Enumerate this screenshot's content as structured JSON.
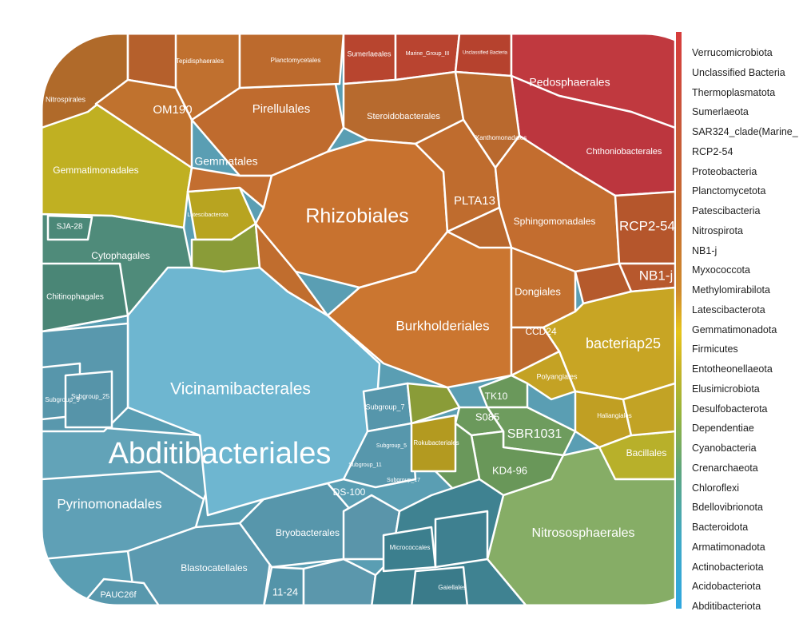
{
  "colors": {
    "red": "#c0393f",
    "rust": "#b85a2e",
    "orange": "#c97030",
    "gold": "#c5a523",
    "olive": "#8a9c38",
    "teal": "#4e8a79",
    "green": "#6c9a5d",
    "lightgreen": "#86ad66",
    "darkteal": "#3f8291",
    "skyblue": "#6fb5cf",
    "blue": "#5ea2b8"
  },
  "legend": {
    "items": [
      "Verrucomicrobiota",
      "Unclassified Bacteria",
      "Thermoplasmatota",
      "Sumerlaeota",
      "SAR324_clade(Marine_",
      "RCP2-54",
      "Proteobacteria",
      "Planctomycetota",
      "Patescibacteria",
      "Nitrospirota",
      "NB1-j",
      "Myxococcota",
      "Methylomirabilota",
      "Latescibacterota",
      "Gemmatimonadota",
      "Firmicutes",
      "Entotheonellaeota",
      "Elusimicrobiota",
      "Desulfobacterota",
      "Dependentiae",
      "Cyanobacteria",
      "Crenarchaeota",
      "Chloroflexi",
      "Bdellovibrionota",
      "Bacteroidota",
      "Armatimonadota",
      "Actinobacteriota",
      "Acidobacteriota",
      "Abditibacteriota"
    ]
  },
  "cells": [
    {
      "label": "Abditibacteriales",
      "color": "blue"
    },
    {
      "label": "Pyrinomonadales",
      "color": "blue"
    },
    {
      "label": "Blastocatellales",
      "color": "blue"
    },
    {
      "label": "Bryobacterales",
      "color": "blue"
    },
    {
      "label": "11-24",
      "color": "blue"
    },
    {
      "label": "PAUC26f",
      "color": "blue"
    },
    {
      "label": "Vicinamibacterales",
      "color": "skyblue"
    },
    {
      "label": "Subgroup_9",
      "color": "blue"
    },
    {
      "label": "Subgroup_25",
      "color": "blue"
    },
    {
      "label": "Subgroup_7",
      "color": "blue"
    },
    {
      "label": "Subgroup_5",
      "color": "blue"
    },
    {
      "label": "Subgroup_11",
      "color": "blue"
    },
    {
      "label": "Subgroup_17",
      "color": "blue"
    },
    {
      "label": "DS-100",
      "color": "blue"
    },
    {
      "label": "Cytophagales",
      "color": "teal"
    },
    {
      "label": "Chitinophagales",
      "color": "teal"
    },
    {
      "label": "SJA-28",
      "color": "teal"
    },
    {
      "label": "Gemmatimonadales",
      "color": "gold"
    },
    {
      "label": "Latescibacterota",
      "color": "gold"
    },
    {
      "label": "Nitrospirales",
      "color": "rust"
    },
    {
      "label": "OM190",
      "color": "orange"
    },
    {
      "label": "Pirellulales",
      "color": "orange"
    },
    {
      "label": "Gemmatales",
      "color": "orange"
    },
    {
      "label": "Tepidisphaerales",
      "color": "orange"
    },
    {
      "label": "Planctomycetales",
      "color": "orange"
    },
    {
      "label": "Sumerlaeales",
      "color": "rust"
    },
    {
      "label": "Marine_Group_III",
      "color": "rust"
    },
    {
      "label": "Unclassified Bacteria",
      "color": "rust"
    },
    {
      "label": "Pedosphaerales",
      "color": "red"
    },
    {
      "label": "Chthoniobacterales",
      "color": "red"
    },
    {
      "label": "Rhizobiales",
      "color": "orange"
    },
    {
      "label": "Steroidobacterales",
      "color": "orange"
    },
    {
      "label": "Xanthomonadales",
      "color": "orange"
    },
    {
      "label": "PLTA13",
      "color": "orange"
    },
    {
      "label": "Sphingomonadales",
      "color": "orange"
    },
    {
      "label": "Burkholderiales",
      "color": "orange"
    },
    {
      "label": "Dongiales",
      "color": "orange"
    },
    {
      "label": "CCD24",
      "color": "orange"
    },
    {
      "label": "RCP2-54",
      "color": "rust"
    },
    {
      "label": "NB1-j",
      "color": "rust"
    },
    {
      "label": "bacteriap25",
      "color": "gold"
    },
    {
      "label": "Polyangiales",
      "color": "gold"
    },
    {
      "label": "Haliangiales",
      "color": "gold"
    },
    {
      "label": "Bacillales",
      "color": "gold"
    },
    {
      "label": "TK10",
      "color": "green"
    },
    {
      "label": "S085",
      "color": "green"
    },
    {
      "label": "SBR1031",
      "color": "green"
    },
    {
      "label": "KD4-96",
      "color": "green"
    },
    {
      "label": "Rokubacteriales",
      "color": "gold"
    },
    {
      "label": "Nitrososphaerales",
      "color": "lightgreen"
    },
    {
      "label": "Micrococcales",
      "color": "darkteal"
    },
    {
      "label": "Gaiellales",
      "color": "darkteal"
    }
  ]
}
